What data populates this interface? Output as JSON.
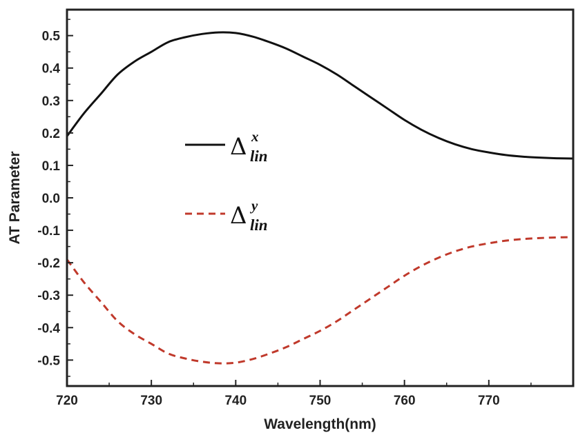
{
  "chart_data": {
    "type": "line",
    "xlabel": "Wavelength(nm)",
    "ylabel": "AT Parameter",
    "xlim": [
      720,
      780
    ],
    "ylim": [
      -0.58,
      0.58
    ],
    "xticks": [
      720,
      730,
      740,
      750,
      760,
      770
    ],
    "xtick_labels": [
      "720",
      "730",
      "740",
      "750",
      "760",
      "770"
    ],
    "yticks": [
      0.5,
      0.4,
      0.3,
      0.2,
      0.1,
      0.0,
      -0.1,
      -0.2,
      -0.3,
      -0.4,
      -0.5
    ],
    "ytick_labels": [
      "0.5",
      "0.4",
      "0.3",
      "0.2",
      "0.1",
      "0.0",
      "-0.1",
      "-0.2",
      "-0.3",
      "-0.4",
      "-0.5"
    ],
    "grid": false,
    "legend_position": "center-left",
    "series": [
      {
        "legend_symbol": "Δ",
        "legend_superscript": "x",
        "legend_subscript": "lin",
        "color": "#111111",
        "style": "solid",
        "x": [
          720,
          722,
          724,
          726,
          728,
          730,
          732,
          734,
          736,
          738,
          740,
          742,
          744,
          746,
          748,
          750,
          752,
          754,
          756,
          758,
          760,
          762,
          764,
          766,
          768,
          770,
          772,
          774,
          776,
          778,
          780
        ],
        "y": [
          0.19,
          0.26,
          0.32,
          0.38,
          0.42,
          0.45,
          0.48,
          0.495,
          0.505,
          0.51,
          0.508,
          0.497,
          0.48,
          0.46,
          0.435,
          0.41,
          0.38,
          0.345,
          0.31,
          0.275,
          0.24,
          0.21,
          0.185,
          0.165,
          0.15,
          0.14,
          0.132,
          0.127,
          0.124,
          0.122,
          0.121
        ]
      },
      {
        "legend_symbol": "Δ",
        "legend_superscript": "y",
        "legend_subscript": "lin",
        "color": "#c0392b",
        "style": "dashed",
        "x": [
          720,
          722,
          724,
          726,
          728,
          730,
          732,
          734,
          736,
          738,
          740,
          742,
          744,
          746,
          748,
          750,
          752,
          754,
          756,
          758,
          760,
          762,
          764,
          766,
          768,
          770,
          772,
          774,
          776,
          778,
          780
        ],
        "y": [
          -0.19,
          -0.26,
          -0.32,
          -0.38,
          -0.42,
          -0.45,
          -0.48,
          -0.495,
          -0.505,
          -0.51,
          -0.508,
          -0.497,
          -0.48,
          -0.46,
          -0.435,
          -0.41,
          -0.38,
          -0.345,
          -0.31,
          -0.275,
          -0.24,
          -0.21,
          -0.185,
          -0.165,
          -0.15,
          -0.14,
          -0.132,
          -0.127,
          -0.124,
          -0.122,
          -0.121
        ]
      }
    ]
  }
}
